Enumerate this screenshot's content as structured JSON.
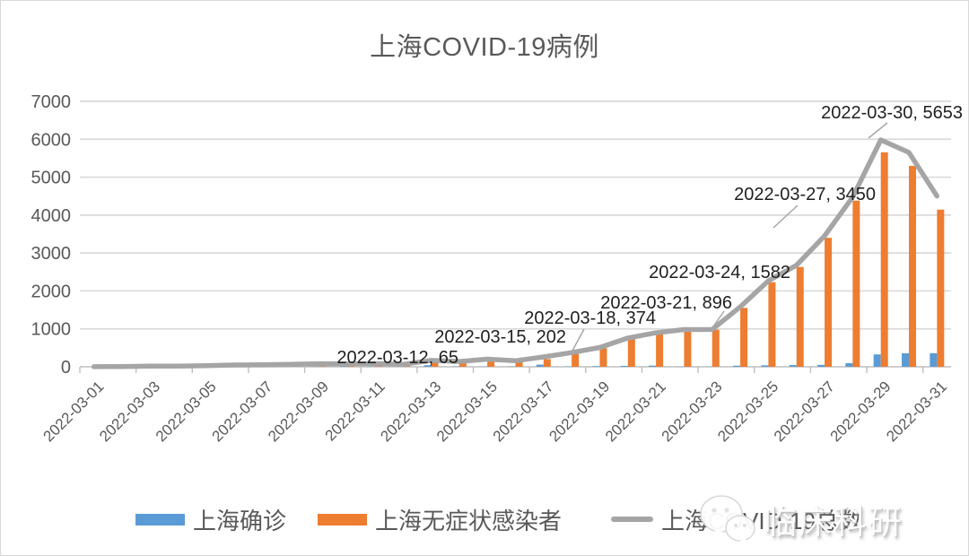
{
  "title": "上海COVID-19病例",
  "legend": {
    "items": [
      {
        "label": "上海确诊",
        "color": "#5B9BD5",
        "marker": "bar"
      },
      {
        "label": "上海无症状感染者",
        "color": "#ED7D31",
        "marker": "bar"
      },
      {
        "label": "上海COVID-19总数",
        "color": "#A5A5A5",
        "marker": "line"
      }
    ]
  },
  "watermark": {
    "text": "临床科研",
    "icon": "wechat-icon"
  },
  "colors": {
    "confirmed_blue": "#5B9BD5",
    "asymptomatic_orange": "#ED7D31",
    "total_gray": "#A5A5A5",
    "axis_text": "#595959",
    "gridline": "#DADADA",
    "annotation_text": "#1F1F1F"
  },
  "chart_data": {
    "type": "bar",
    "title": "上海COVID-19病例",
    "categories": [
      "2022-03-01",
      "2022-03-02",
      "2022-03-03",
      "2022-03-04",
      "2022-03-05",
      "2022-03-06",
      "2022-03-07",
      "2022-03-08",
      "2022-03-09",
      "2022-03-10",
      "2022-03-11",
      "2022-03-12",
      "2022-03-13",
      "2022-03-14",
      "2022-03-15",
      "2022-03-16",
      "2022-03-17",
      "2022-03-18",
      "2022-03-19",
      "2022-03-20",
      "2022-03-21",
      "2022-03-22",
      "2022-03-23",
      "2022-03-24",
      "2022-03-25",
      "2022-03-26",
      "2022-03-27",
      "2022-03-28",
      "2022-03-29",
      "2022-03-30",
      "2022-03-31"
    ],
    "series": [
      {
        "name": "上海确诊",
        "type": "bar",
        "color": "#5B9BD5",
        "values": [
          1,
          3,
          2,
          3,
          0,
          3,
          4,
          3,
          4,
          11,
          5,
          1,
          41,
          9,
          5,
          8,
          57,
          8,
          17,
          24,
          31,
          4,
          4,
          29,
          38,
          45,
          50,
          96,
          326,
          355,
          358
        ]
      },
      {
        "name": "上海无症状感染者",
        "type": "bar",
        "color": "#ED7D31",
        "values": [
          1,
          5,
          14,
          16,
          28,
          45,
          51,
          62,
          76,
          64,
          78,
          64,
          128,
          130,
          197,
          150,
          203,
          366,
          492,
          734,
          865,
          977,
          979,
          1553,
          2231,
          2631,
          3400,
          4381,
          5656,
          5298,
          4144
        ]
      },
      {
        "name": "上海COVID-19总数",
        "type": "line",
        "color": "#A5A5A5",
        "values": [
          2,
          8,
          16,
          19,
          28,
          48,
          55,
          65,
          80,
          75,
          83,
          65,
          169,
          139,
          202,
          158,
          260,
          374,
          509,
          758,
          896,
          981,
          983,
          1582,
          2269,
          2676,
          3450,
          4477,
          5982,
          5653,
          4502
        ]
      }
    ],
    "ylim": [
      0,
      7000
    ],
    "ytick_step": 1000,
    "ytick_labels": [
      "0",
      "1000",
      "2000",
      "3000",
      "4000",
      "5000",
      "6000",
      "7000"
    ],
    "x_tick_interval": 2,
    "x_tick_labels": [
      "2022-03-01",
      "2022-03-03",
      "2022-03-05",
      "2022-03-07",
      "2022-03-09",
      "2022-03-11",
      "2022-03-13",
      "2022-03-15",
      "2022-03-17",
      "2022-03-19",
      "2022-03-21",
      "2022-03-23",
      "2022-03-25",
      "2022-03-27",
      "2022-03-29",
      "2022-03-31"
    ],
    "grid": true,
    "legend_position": "bottom",
    "annotations": [
      {
        "date": "2022-03-12",
        "value": 65,
        "label": "2022-03-12, 65"
      },
      {
        "date": "2022-03-15",
        "value": 202,
        "label": "2022-03-15, 202"
      },
      {
        "date": "2022-03-18",
        "value": 374,
        "label": "2022-03-18, 374"
      },
      {
        "date": "2022-03-21",
        "value": 896,
        "label": "2022-03-21, 896"
      },
      {
        "date": "2022-03-24",
        "value": 1582,
        "label": "2022-03-24, 1582"
      },
      {
        "date": "2022-03-27",
        "value": 3450,
        "label": "2022-03-27, 3450"
      },
      {
        "date": "2022-03-30",
        "value": 5653,
        "label": "2022-03-30, 5653"
      }
    ]
  }
}
